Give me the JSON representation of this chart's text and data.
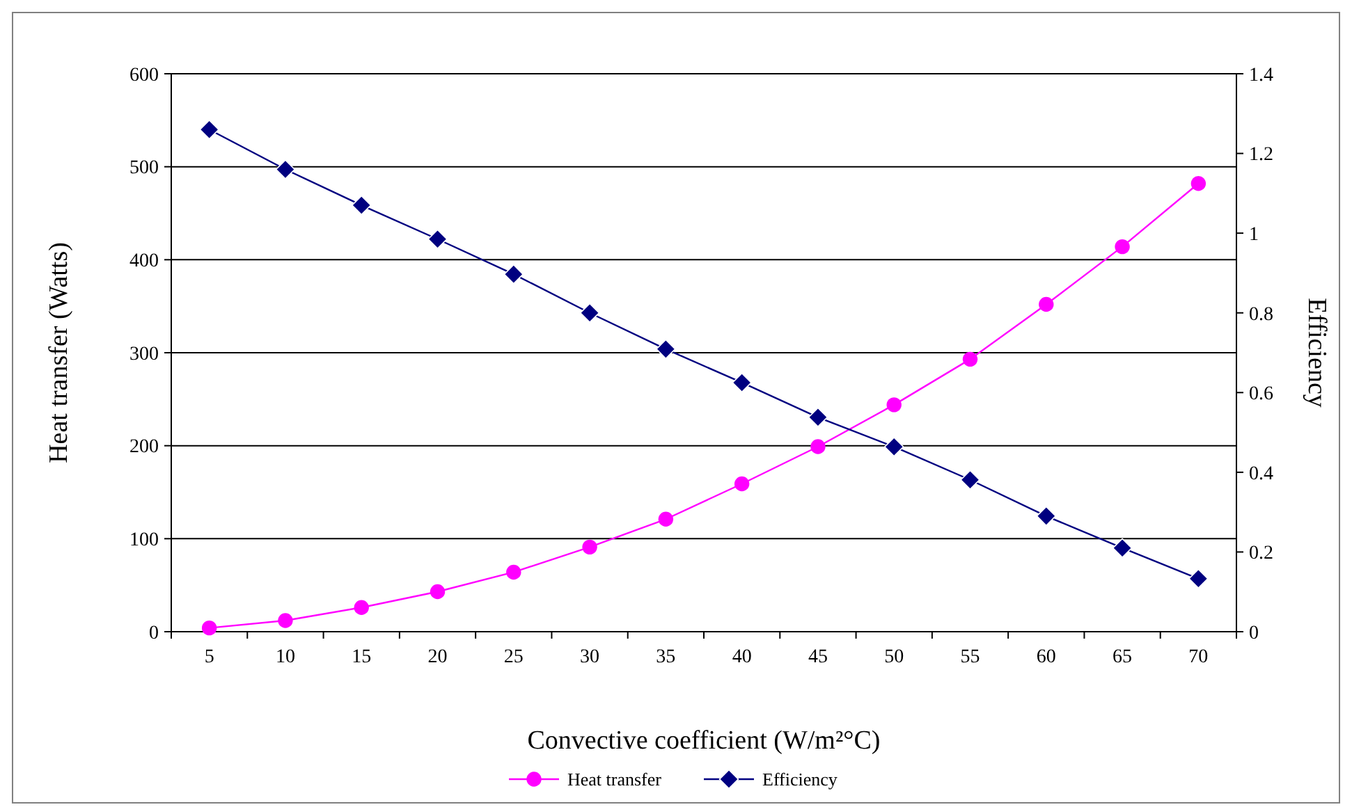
{
  "chart_data": {
    "type": "line",
    "xlabel": "Convective coefficient (W/m²°C)",
    "ylabel": "Heat transfer (Watts)",
    "y2label": "Efficiency",
    "categories": [
      "5",
      "10",
      "15",
      "20",
      "25",
      "30",
      "35",
      "40",
      "45",
      "50",
      "55",
      "60",
      "65",
      "70"
    ],
    "series": [
      {
        "name": "Heat transfer",
        "color": "#ff00ff",
        "marker": "circle",
        "values": [
          4,
          12,
          26,
          43,
          64,
          91,
          121,
          159,
          199,
          244,
          293,
          352,
          414,
          482
        ]
      },
      {
        "name": "Efficiency",
        "color": "#000080",
        "marker": "diamond",
        "axis": "y2",
        "values": [
          1.26,
          1.16,
          1.07,
          0.985,
          0.897,
          0.8,
          0.709,
          0.625,
          0.538,
          0.464,
          0.381,
          0.29,
          0.21,
          0.133
        ]
      }
    ],
    "ylim": [
      0,
      600
    ],
    "yticks": [
      0,
      100,
      200,
      300,
      400,
      500,
      600
    ],
    "y2lim": [
      0,
      1.4
    ],
    "y2ticks": [
      0,
      0.2,
      0.4,
      0.6,
      0.8,
      1,
      1.2,
      1.4
    ],
    "grid": "y",
    "legend": "bottom"
  }
}
